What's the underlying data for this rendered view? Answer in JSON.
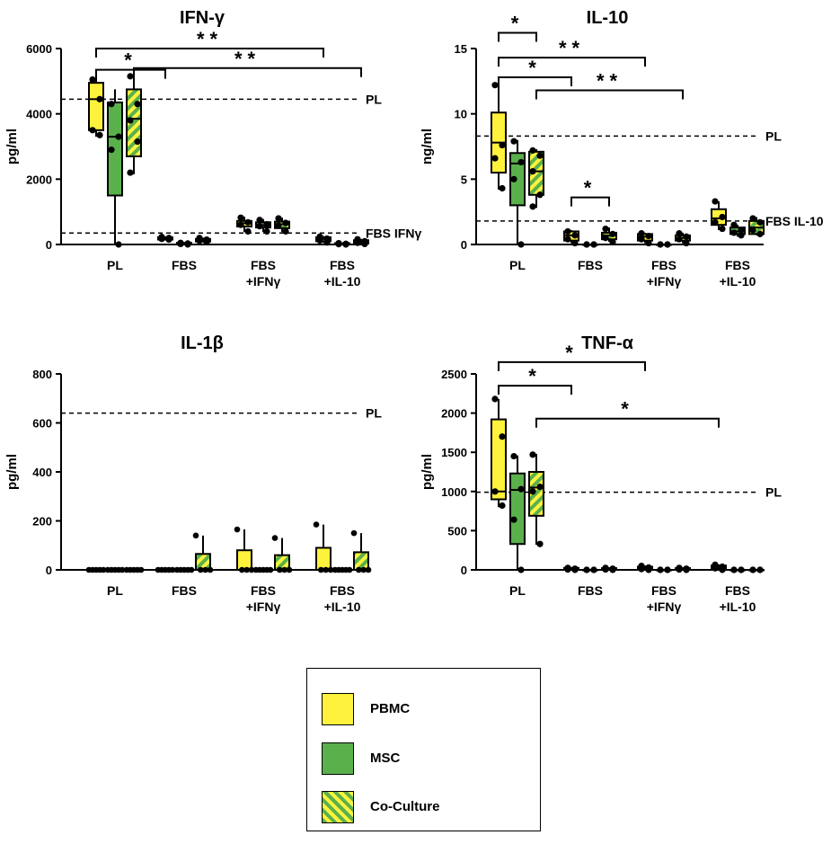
{
  "colors": {
    "PBMC": "#fff23c",
    "MSC": "#5ab14c",
    "stripeA": "#fff23c",
    "stripeB": "#5ab14c"
  },
  "legend": [
    {
      "name": "PBMC",
      "fill": "PBMC"
    },
    {
      "name": "MSC",
      "fill": "MSC"
    },
    {
      "name": "Co-Culture",
      "fill": "stripe"
    }
  ],
  "chart_data": [
    {
      "type": "box",
      "title": "IFN-γ",
      "ylabel": "pg/ml",
      "ylim": [
        0,
        6000
      ],
      "yticks": [
        "0",
        "2000",
        "4000",
        "6000"
      ],
      "categories": [
        "PL",
        "FBS",
        "FBS\n+IFNγ",
        "FBS\n+IL-10"
      ],
      "series": [
        "PBMC",
        "MSC",
        "Co-Culture"
      ],
      "boxes": [
        [
          {
            "q1": 3500,
            "med": 4450,
            "q3": 4950,
            "min": 3300,
            "max": 5100,
            "pts": [
              5050,
              4450,
              3500,
              3350
            ]
          },
          {
            "q1": 1500,
            "med": 3300,
            "q3": 4350,
            "min": 0,
            "max": 4750,
            "pts": [
              4300,
              3300,
              2900,
              0
            ]
          },
          {
            "q1": 2700,
            "med": 3850,
            "q3": 4750,
            "min": 2150,
            "max": 5200,
            "pts": [
              5150,
              4300,
              3800,
              3150,
              2200
            ]
          }
        ],
        [
          {
            "q1": 150,
            "med": 190,
            "q3": 220,
            "min": 130,
            "max": 240,
            "pts": [
              230,
              200,
              170,
              150
            ]
          },
          {
            "q1": 10,
            "med": 30,
            "q3": 50,
            "min": 0,
            "max": 60,
            "pts": [
              50,
              30,
              15,
              0
            ]
          },
          {
            "q1": 90,
            "med": 130,
            "q3": 170,
            "min": 60,
            "max": 210,
            "pts": [
              200,
              150,
              110,
              70
            ]
          }
        ],
        [
          {
            "q1": 550,
            "med": 650,
            "q3": 720,
            "min": 380,
            "max": 850,
            "pts": [
              820,
              680,
              600,
              400
            ]
          },
          {
            "q1": 520,
            "med": 590,
            "q3": 680,
            "min": 380,
            "max": 780,
            "pts": [
              750,
              620,
              560,
              400
            ]
          },
          {
            "q1": 500,
            "med": 620,
            "q3": 700,
            "min": 380,
            "max": 820,
            "pts": [
              800,
              660,
              580,
              400
            ]
          }
        ],
        [
          {
            "q1": 100,
            "med": 170,
            "q3": 220,
            "min": 50,
            "max": 260,
            "pts": [
              240,
              180,
              120,
              60
            ]
          },
          {
            "q1": 5,
            "med": 20,
            "q3": 40,
            "min": 0,
            "max": 50,
            "pts": [
              40,
              20,
              10,
              0
            ]
          },
          {
            "q1": 30,
            "med": 80,
            "q3": 130,
            "min": 10,
            "max": 170,
            "pts": [
              160,
              100,
              50,
              15
            ]
          }
        ]
      ],
      "reflines": [
        {
          "value": 4450,
          "label": "PL"
        },
        {
          "value": 350,
          "label": "FBS IFNγ"
        }
      ],
      "brackets": [
        {
          "from": [
            0,
            0
          ],
          "to": [
            3,
            0
          ],
          "y": 6000,
          "label": "**"
        },
        {
          "from": [
            0,
            2
          ],
          "to": [
            3,
            2
          ],
          "y": 5400,
          "label": "**"
        },
        {
          "from": [
            0,
            0
          ],
          "to": [
            1,
            0
          ],
          "y": 5350,
          "label": "*"
        }
      ]
    },
    {
      "type": "box",
      "title": "IL-10",
      "ylabel": "ng/ml",
      "ylim": [
        0,
        15
      ],
      "yticks": [
        "0",
        "5",
        "10",
        "15"
      ],
      "categories": [
        "PL",
        "FBS",
        "FBS\n+IFNγ",
        "FBS\n+IL-10"
      ],
      "series": [
        "PBMC",
        "MSC",
        "Co-Culture"
      ],
      "boxes": [
        [
          {
            "q1": 5.5,
            "med": 7.8,
            "q3": 10.1,
            "min": 4.2,
            "max": 12.3,
            "pts": [
              12.2,
              7.6,
              6.6,
              4.3
            ]
          },
          {
            "q1": 3.0,
            "med": 6.2,
            "q3": 7.0,
            "min": 0,
            "max": 8.0,
            "pts": [
              7.9,
              6.3,
              5.0,
              0
            ]
          },
          {
            "q1": 3.8,
            "med": 5.6,
            "q3": 7.1,
            "min": 2.8,
            "max": 7.3,
            "pts": [
              7.2,
              6.8,
              5.6,
              3.8,
              2.9
            ]
          }
        ],
        [
          {
            "q1": 0.3,
            "med": 0.7,
            "q3": 1.0,
            "min": 0.1,
            "max": 1.1,
            "pts": [
              1.0,
              0.7,
              0.4,
              0.1
            ]
          },
          {
            "q1": 0,
            "med": 0,
            "q3": 0,
            "min": 0,
            "max": 0,
            "pts": [
              0,
              0,
              0,
              0
            ]
          },
          {
            "q1": 0.4,
            "med": 0.7,
            "q3": 0.9,
            "min": 0.2,
            "max": 1.3,
            "pts": [
              1.2,
              0.8,
              0.5,
              0.2
            ]
          }
        ],
        [
          {
            "q1": 0.3,
            "med": 0.6,
            "q3": 0.8,
            "min": 0.1,
            "max": 0.9,
            "pts": [
              0.85,
              0.65,
              0.4,
              0.1
            ]
          },
          {
            "q1": 0,
            "med": 0,
            "q3": 0,
            "min": 0,
            "max": 0,
            "pts": [
              0,
              0,
              0,
              0
            ]
          },
          {
            "q1": 0.3,
            "med": 0.5,
            "q3": 0.7,
            "min": 0.1,
            "max": 0.9,
            "pts": [
              0.85,
              0.6,
              0.4,
              0.1
            ]
          }
        ],
        [
          {
            "q1": 1.5,
            "med": 2.0,
            "q3": 2.7,
            "min": 1.1,
            "max": 3.3,
            "pts": [
              3.3,
              2.1,
              1.7,
              1.2
            ]
          },
          {
            "q1": 0.8,
            "med": 1.0,
            "q3": 1.3,
            "min": 0.6,
            "max": 1.5,
            "pts": [
              1.5,
              1.1,
              0.9,
              0.7
            ]
          },
          {
            "q1": 0.8,
            "med": 1.3,
            "q3": 1.8,
            "min": 0.7,
            "max": 2.1,
            "pts": [
              2.0,
              1.7,
              1.1,
              0.8
            ]
          }
        ]
      ],
      "reflines": [
        {
          "value": 8.3,
          "label": "PL"
        },
        {
          "value": 1.8,
          "label": "FBS IL-10"
        }
      ],
      "brackets": [
        {
          "from": [
            0,
            0
          ],
          "to": [
            0,
            2
          ],
          "y": 16.2,
          "label": "*"
        },
        {
          "from": [
            0,
            0
          ],
          "to": [
            2,
            0
          ],
          "y": 14.3,
          "label": "**"
        },
        {
          "from": [
            0,
            0
          ],
          "to": [
            1,
            0
          ],
          "y": 12.8,
          "label": "*"
        },
        {
          "from": [
            0,
            2
          ],
          "to": [
            2,
            2
          ],
          "y": 11.8,
          "label": "**"
        },
        {
          "from": [
            1,
            0
          ],
          "to": [
            1,
            2
          ],
          "y": 3.6,
          "label": "*"
        }
      ]
    },
    {
      "type": "bar",
      "title": "IL-1β",
      "ylabel": "pg/ml",
      "ylim": [
        0,
        800
      ],
      "yticks": [
        "0",
        "200",
        "400",
        "600",
        "800"
      ],
      "categories": [
        "PL",
        "FBS",
        "FBS\n+IFNγ",
        "FBS\n+IL-10"
      ],
      "series": [
        "PBMC",
        "MSC",
        "Co-Culture"
      ],
      "bars": [
        [
          {
            "mean": 0,
            "err": 0,
            "pts": [
              0,
              0,
              0,
              0,
              0
            ]
          },
          {
            "mean": 0,
            "err": 0,
            "pts": [
              0,
              0,
              0,
              0,
              0
            ]
          },
          {
            "mean": 0,
            "err": 0,
            "pts": [
              0,
              0,
              0,
              0,
              0
            ]
          }
        ],
        [
          {
            "mean": 0,
            "err": 0,
            "pts": [
              0,
              0,
              0,
              0,
              0
            ]
          },
          {
            "mean": 0,
            "err": 0,
            "pts": [
              0,
              0,
              0,
              0,
              0
            ]
          },
          {
            "mean": 65,
            "err": 140,
            "pts": [
              140,
              0,
              0,
              0
            ]
          }
        ],
        [
          {
            "mean": 80,
            "err": 165,
            "pts": [
              165,
              0,
              0,
              0
            ]
          },
          {
            "mean": 0,
            "err": 0,
            "pts": [
              0,
              0,
              0,
              0,
              0
            ]
          },
          {
            "mean": 60,
            "err": 130,
            "pts": [
              130,
              0,
              0,
              0
            ]
          }
        ],
        [
          {
            "mean": 90,
            "err": 185,
            "pts": [
              185,
              0,
              0,
              0
            ]
          },
          {
            "mean": 0,
            "err": 0,
            "pts": [
              0,
              0,
              0,
              0,
              0
            ]
          },
          {
            "mean": 72,
            "err": 150,
            "pts": [
              150,
              0,
              0,
              0
            ]
          }
        ]
      ],
      "reflines": [
        {
          "value": 640,
          "label": "PL"
        }
      ],
      "brackets": []
    },
    {
      "type": "box",
      "title": "TNF-α",
      "ylabel": "pg/ml",
      "ylim": [
        0,
        2500
      ],
      "yticks": [
        "0",
        "500",
        "1000",
        "1500",
        "2000",
        "2500"
      ],
      "categories": [
        "PL",
        "FBS",
        "FBS\n+IFNγ",
        "FBS\n+IL-10"
      ],
      "series": [
        "PBMC",
        "MSC",
        "Co-Culture"
      ],
      "boxes": [
        [
          {
            "q1": 900,
            "med": 1000,
            "q3": 1920,
            "min": 800,
            "max": 2180,
            "pts": [
              2180,
              1700,
              1000,
              820
            ]
          },
          {
            "q1": 330,
            "med": 1020,
            "q3": 1230,
            "min": 0,
            "max": 1460,
            "pts": [
              1450,
              1030,
              640,
              0
            ]
          },
          {
            "q1": 690,
            "med": 1050,
            "q3": 1250,
            "min": 320,
            "max": 1480,
            "pts": [
              1470,
              1060,
              1000,
              330
            ]
          }
        ],
        [
          {
            "q1": 5,
            "med": 15,
            "q3": 25,
            "min": 0,
            "max": 30,
            "pts": [
              25,
              15,
              5,
              0
            ]
          },
          {
            "q1": 0,
            "med": 0,
            "q3": 0,
            "min": 0,
            "max": 0,
            "pts": [
              0,
              0,
              0,
              0
            ]
          },
          {
            "q1": 5,
            "med": 12,
            "q3": 22,
            "min": 0,
            "max": 28,
            "pts": [
              25,
              15,
              5,
              0
            ]
          }
        ],
        [
          {
            "q1": 10,
            "med": 25,
            "q3": 40,
            "min": 0,
            "max": 55,
            "pts": [
              50,
              30,
              10,
              0
            ]
          },
          {
            "q1": 0,
            "med": 0,
            "q3": 0,
            "min": 0,
            "max": 0,
            "pts": [
              0,
              0,
              0,
              0
            ]
          },
          {
            "q1": 5,
            "med": 12,
            "q3": 22,
            "min": 0,
            "max": 28,
            "pts": [
              25,
              15,
              5,
              0
            ]
          }
        ],
        [
          {
            "q1": 15,
            "med": 35,
            "q3": 55,
            "min": 0,
            "max": 70,
            "pts": [
              65,
              40,
              20,
              0
            ]
          },
          {
            "q1": 0,
            "med": 0,
            "q3": 0,
            "min": 0,
            "max": 0,
            "pts": [
              0,
              0,
              0,
              0
            ]
          },
          {
            "q1": 0,
            "med": 0,
            "q3": 0,
            "min": 0,
            "max": 0,
            "pts": [
              0,
              0,
              0,
              0
            ]
          }
        ]
      ],
      "reflines": [
        {
          "value": 990,
          "label": "PL"
        }
      ],
      "brackets": [
        {
          "from": [
            0,
            0
          ],
          "to": [
            2,
            0
          ],
          "y": 2650,
          "label": "*"
        },
        {
          "from": [
            0,
            0
          ],
          "to": [
            1,
            0
          ],
          "y": 2350,
          "label": "*"
        },
        {
          "from": [
            0,
            2
          ],
          "to": [
            3,
            0
          ],
          "y": 1930,
          "label": "*"
        }
      ]
    }
  ]
}
